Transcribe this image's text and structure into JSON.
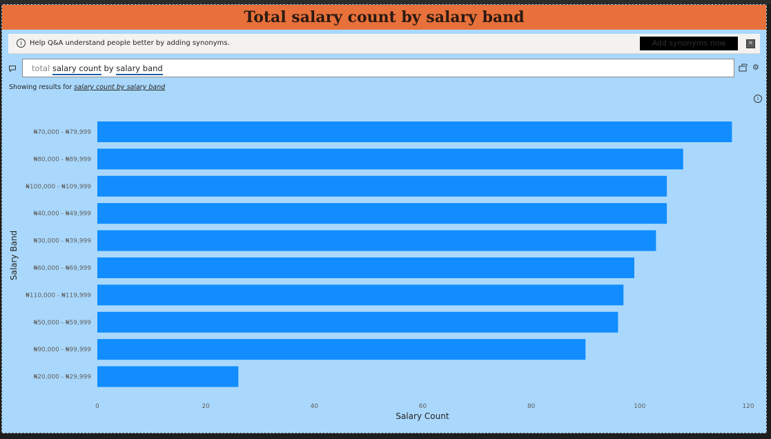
{
  "visual": {
    "title": "Total salary count by salary band"
  },
  "notice": {
    "message": "Help Q&A understand people better by adding synonyms.",
    "button_label": "Add synonyms now",
    "close_glyph": "✕"
  },
  "qa": {
    "query_word1": "total",
    "query_term1": "salary count",
    "query_word2": "by",
    "query_term2": "salary band",
    "showing_prefix": "Showing results for",
    "showing_link": "salary count by salary band"
  },
  "colors": {
    "title_bar": "#e8703a",
    "background": "#aad8fc",
    "bar": "#118dff"
  },
  "chart_data": {
    "type": "bar",
    "orientation": "horizontal",
    "xlabel": "Salary Count",
    "ylabel": "Salary Band",
    "xlim": [
      0,
      120
    ],
    "xticks": [
      0,
      20,
      40,
      60,
      80,
      100,
      120
    ],
    "grid": false,
    "categories": [
      "₦70,000 - ₦79,999",
      "₦80,000 - ₦89,999",
      "₦100,000 - ₦109,999",
      "₦40,000 - ₦49,999",
      "₦30,000 - ₦39,999",
      "₦60,000 - ₦69,999",
      "₦110,000 - ₦119,999",
      "₦50,000 - ₦59,999",
      "₦90,000 - ₦99,999",
      "₦20,000 - ₦29,999"
    ],
    "values": [
      117,
      108,
      105,
      105,
      103,
      99,
      97,
      96,
      90,
      26
    ]
  }
}
